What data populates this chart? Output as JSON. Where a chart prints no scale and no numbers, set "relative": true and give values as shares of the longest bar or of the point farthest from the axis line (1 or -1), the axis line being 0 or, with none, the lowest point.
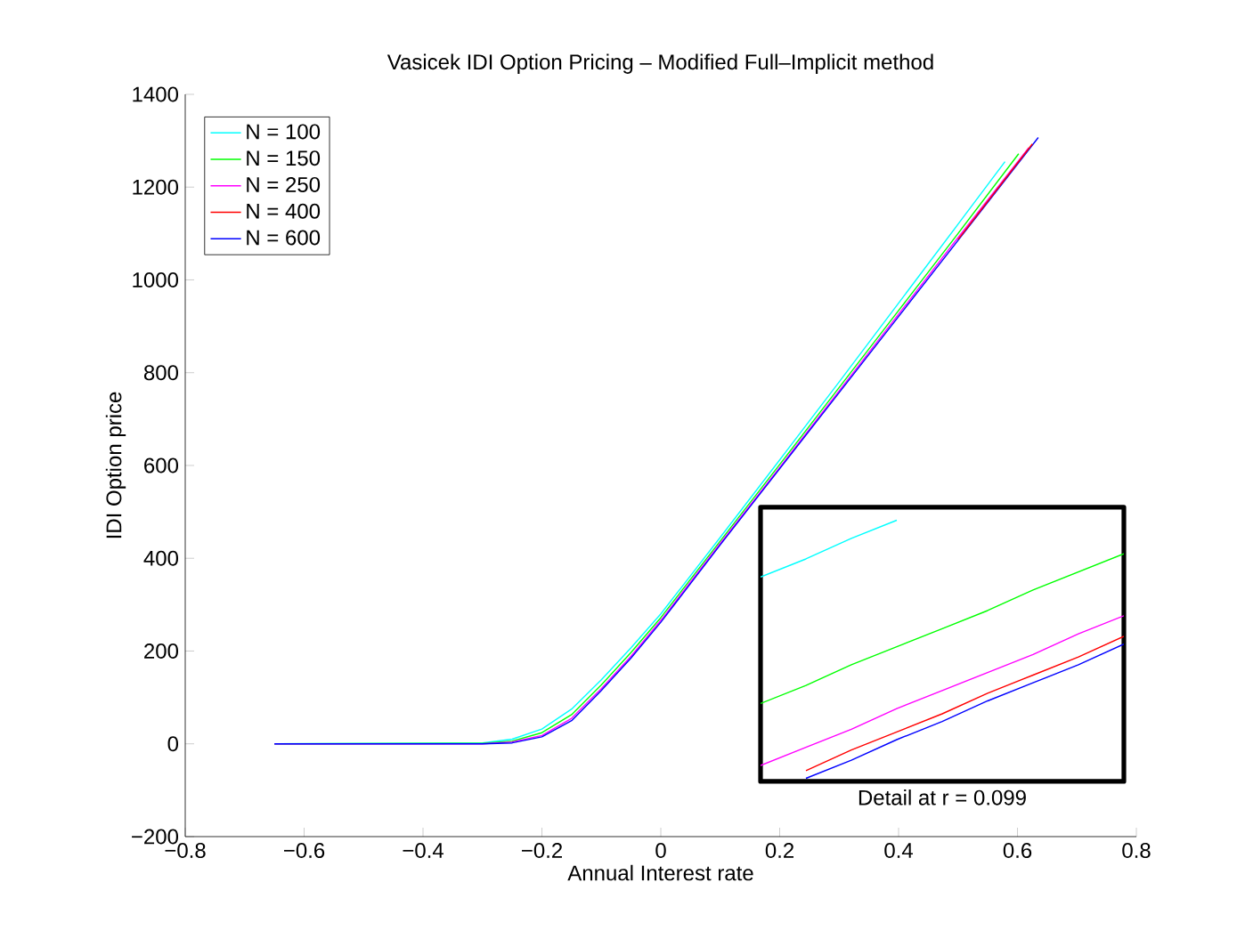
{
  "chart_data": [
    {
      "type": "line",
      "title": "Vasicek IDI Option Pricing – Modified Full–Implicit method",
      "xlabel": "Annual Interest rate",
      "ylabel": "IDI Option price",
      "legend": "top left",
      "grid": false,
      "line_style": "solid",
      "marker": "none",
      "xlim": [
        -0.8,
        0.8
      ],
      "ylim": [
        -200,
        1400
      ],
      "xticks": [
        {
          "value": -0.8,
          "label": "−0.8"
        },
        {
          "value": -0.6,
          "label": "−0.6"
        },
        {
          "value": -0.4,
          "label": "−0.4"
        },
        {
          "value": -0.2,
          "label": "−0.2"
        },
        0,
        0.2,
        0.4,
        0.6,
        0.8
      ],
      "yticks": [
        {
          "value": -200,
          "label": "−200"
        },
        0,
        200,
        400,
        600,
        800,
        1000,
        1200,
        1400
      ],
      "series": [
        {
          "name": "N = 100",
          "color": "#00ffff",
          "x": [
            -0.65,
            -0.3,
            -0.25,
            -0.2,
            -0.15,
            -0.1,
            -0.05,
            0,
            0.1,
            0.2,
            0.3,
            0.4,
            0.5,
            0.579
          ],
          "values": [
            0,
            2,
            10,
            32,
            75,
            138,
            207,
            280,
            445,
            612,
            780,
            950,
            1120,
            1255
          ]
        },
        {
          "name": "N = 150",
          "color": "#00ff00",
          "x": [
            -0.65,
            -0.3,
            -0.25,
            -0.2,
            -0.15,
            -0.1,
            -0.05,
            0,
            0.1,
            0.2,
            0.3,
            0.4,
            0.5,
            0.602
          ],
          "values": [
            0,
            1,
            6,
            24,
            63,
            127,
            197,
            272,
            437,
            602,
            768,
            934,
            1100,
            1272
          ]
        },
        {
          "name": "N = 250",
          "color": "#ff00ff",
          "x": [
            -0.65,
            -0.3,
            -0.25,
            -0.2,
            -0.15,
            -0.1,
            -0.05,
            0,
            0.1,
            0.2,
            0.3,
            0.4,
            0.5,
            0.619
          ],
          "values": [
            0,
            0,
            4,
            18,
            55,
            119,
            189,
            266,
            432,
            596,
            761,
            926,
            1091,
            1285
          ]
        },
        {
          "name": "N = 400",
          "color": "#ff0000",
          "x": [
            0.5,
            0.625
          ],
          "values": [
            1087,
            1293
          ]
        },
        {
          "name": "N = 600",
          "color": "#0000ff",
          "x": [
            -0.65,
            -0.3,
            -0.25,
            -0.2,
            -0.15,
            -0.1,
            -0.05,
            0,
            0.1,
            0.2,
            0.3,
            0.4,
            0.5,
            0.635
          ],
          "values": [
            0,
            0,
            2,
            15,
            50,
            115,
            185,
            262,
            429,
            593,
            757,
            921,
            1085,
            1307
          ]
        }
      ]
    },
    {
      "type": "line",
      "relative": true,
      "xlabel": "Detail at r = 0.099",
      "legend": false,
      "line_style": "solid",
      "marker": "none",
      "categories": [
        null,
        null,
        null,
        null,
        null,
        null,
        null,
        null,
        null
      ],
      "series": [
        {
          "color": "#00ffff",
          "values": [
            0.78,
            0.85,
            0.93,
            1,
            null,
            null,
            null,
            null,
            null
          ]
        },
        {
          "color": "#00ff00",
          "values": [
            0.29,
            0.36,
            0.44,
            0.51,
            0.58,
            0.65,
            0.73,
            0.8,
            0.87
          ]
        },
        {
          "color": "#ff00ff",
          "values": [
            0.05,
            0.12,
            0.19,
            0.27,
            0.34,
            0.41,
            0.48,
            0.56,
            0.63
          ]
        },
        {
          "color": "#ff0000",
          "values": [
            null,
            0.03,
            0.11,
            0.18,
            0.25,
            0.33,
            0.4,
            0.47,
            0.55
          ]
        },
        {
          "color": "#0000ff",
          "values": [
            null,
            0,
            0.07,
            0.15,
            0.22,
            0.3,
            0.37,
            0.44,
            0.52
          ]
        }
      ]
    }
  ]
}
